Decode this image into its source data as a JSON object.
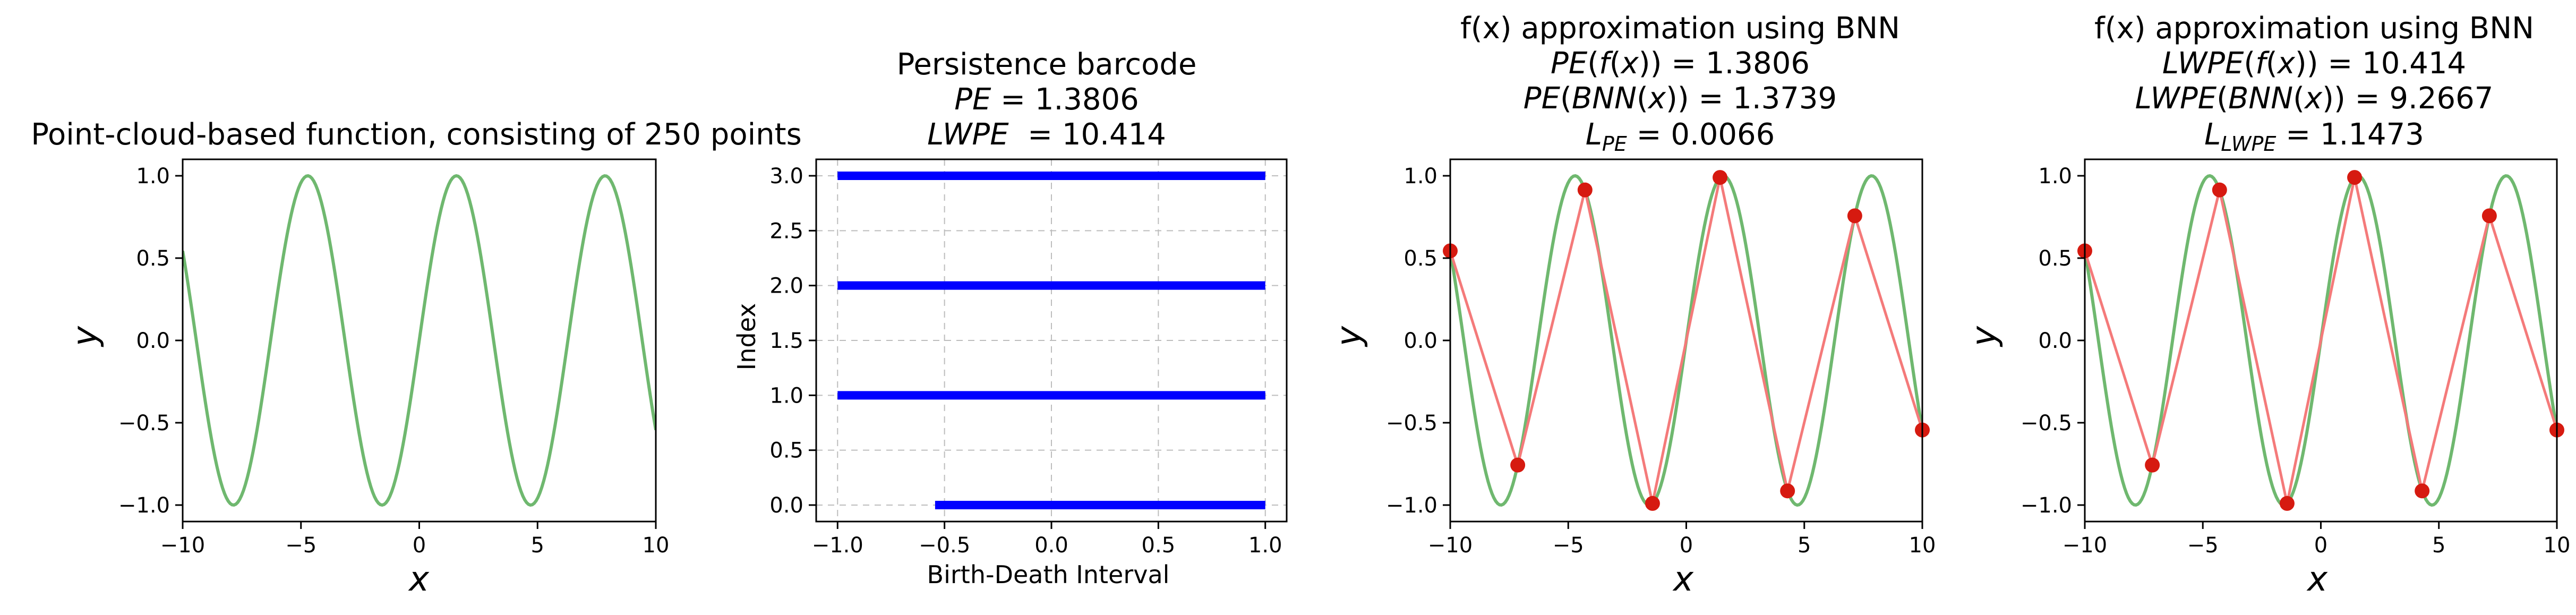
{
  "colors": {
    "true_curve": "#6fb86f",
    "bnn_line": "#f47a7a",
    "bnn_points": "#d61a10",
    "bars": "#0000ff",
    "grid": "#bdbdbd"
  },
  "chart_data": [
    {
      "type": "line",
      "title": [
        "Point-cloud-based function, consisting of 250 points"
      ],
      "xlabel": "x",
      "ylabel": "y",
      "xlim": [
        -10,
        10
      ],
      "ylim": [
        -1.1,
        1.1
      ],
      "xticks": [
        -10,
        -5,
        0,
        5,
        10
      ],
      "xtick_labels": [
        "−10",
        "−5",
        "0",
        "5",
        "10"
      ],
      "yticks": [
        -1.0,
        -0.5,
        0.0,
        0.5,
        1.0
      ],
      "ytick_labels": [
        "−1.0",
        "−0.5",
        "0.0",
        "0.5",
        "1.0"
      ],
      "grid": false,
      "series": [
        {
          "kind": "curve",
          "function": "sin(x)",
          "n_points": 250,
          "x_range": [
            -10,
            10
          ]
        }
      ]
    },
    {
      "type": "bar",
      "orientation": "horizontal",
      "title": [
        "Persistence barcode",
        "PE = 1.3806",
        "LWPE  = 10.414"
      ],
      "xlabel": "Birth-Death Interval",
      "ylabel": "Index",
      "xlim": [
        -1.1,
        1.1
      ],
      "ylim": [
        -0.15,
        3.15
      ],
      "xticks": [
        -1.0,
        -0.5,
        0.0,
        0.5,
        1.0
      ],
      "xtick_labels": [
        "−1.0",
        "−0.5",
        "0.0",
        "0.5",
        "1.0"
      ],
      "yticks": [
        0.0,
        0.5,
        1.0,
        1.5,
        2.0,
        2.5,
        3.0
      ],
      "ytick_labels": [
        "0.0",
        "0.5",
        "1.0",
        "1.5",
        "2.0",
        "2.5",
        "3.0"
      ],
      "grid": true,
      "intervals": [
        {
          "index": 0,
          "birth": -0.544,
          "death": 1.0
        },
        {
          "index": 1,
          "birth": -1.0,
          "death": 1.0
        },
        {
          "index": 2,
          "birth": -1.0,
          "death": 1.0
        },
        {
          "index": 3,
          "birth": -1.0,
          "death": 1.0
        }
      ]
    },
    {
      "type": "line",
      "title": [
        "f(x) approximation using BNN",
        "PE(f(x)) = 1.3806",
        "PE(BNN(x)) = 1.3739",
        "L_PE = 0.0066"
      ],
      "xlabel": "x",
      "ylabel": "y",
      "xlim": [
        -10,
        10
      ],
      "ylim": [
        -1.1,
        1.1
      ],
      "xticks": [
        -10,
        -5,
        0,
        5,
        10
      ],
      "xtick_labels": [
        "−10",
        "−5",
        "0",
        "5",
        "10"
      ],
      "yticks": [
        -1.0,
        -0.5,
        0.0,
        0.5,
        1.0
      ],
      "ytick_labels": [
        "−1.0",
        "−0.5",
        "0.0",
        "0.5",
        "1.0"
      ],
      "grid": false,
      "series": [
        {
          "kind": "curve",
          "function": "sin(x)",
          "n_points": 250,
          "x_range": [
            -10,
            10
          ]
        },
        {
          "kind": "points",
          "x": [
            -10,
            -7.14,
            -4.29,
            -1.43,
            1.43,
            4.29,
            7.14,
            10
          ],
          "y": [
            0.544,
            -0.757,
            0.914,
            -0.99,
            0.99,
            -0.914,
            0.757,
            -0.544
          ]
        }
      ]
    },
    {
      "type": "line",
      "title": [
        "f(x) approximation using BNN",
        "LWPE(f(x)) = 10.414",
        "LWPE(BNN(x)) = 9.2667",
        "L_LWPE = 1.1473"
      ],
      "xlabel": "x",
      "ylabel": "y",
      "xlim": [
        -10,
        10
      ],
      "ylim": [
        -1.1,
        1.1
      ],
      "xticks": [
        -10,
        -5,
        0,
        5,
        10
      ],
      "xtick_labels": [
        "−10",
        "−5",
        "0",
        "5",
        "10"
      ],
      "yticks": [
        -1.0,
        -0.5,
        0.0,
        0.5,
        1.0
      ],
      "ytick_labels": [
        "−1.0",
        "−0.5",
        "0.0",
        "0.5",
        "1.0"
      ],
      "grid": false,
      "series": [
        {
          "kind": "curve",
          "function": "sin(x)",
          "n_points": 250,
          "x_range": [
            -10,
            10
          ]
        },
        {
          "kind": "points",
          "x": [
            -10,
            -7.14,
            -4.29,
            -1.43,
            1.43,
            4.29,
            7.14,
            10
          ],
          "y": [
            0.544,
            -0.757,
            0.914,
            -0.99,
            0.99,
            -0.914,
            0.757,
            -0.544
          ]
        }
      ]
    }
  ]
}
